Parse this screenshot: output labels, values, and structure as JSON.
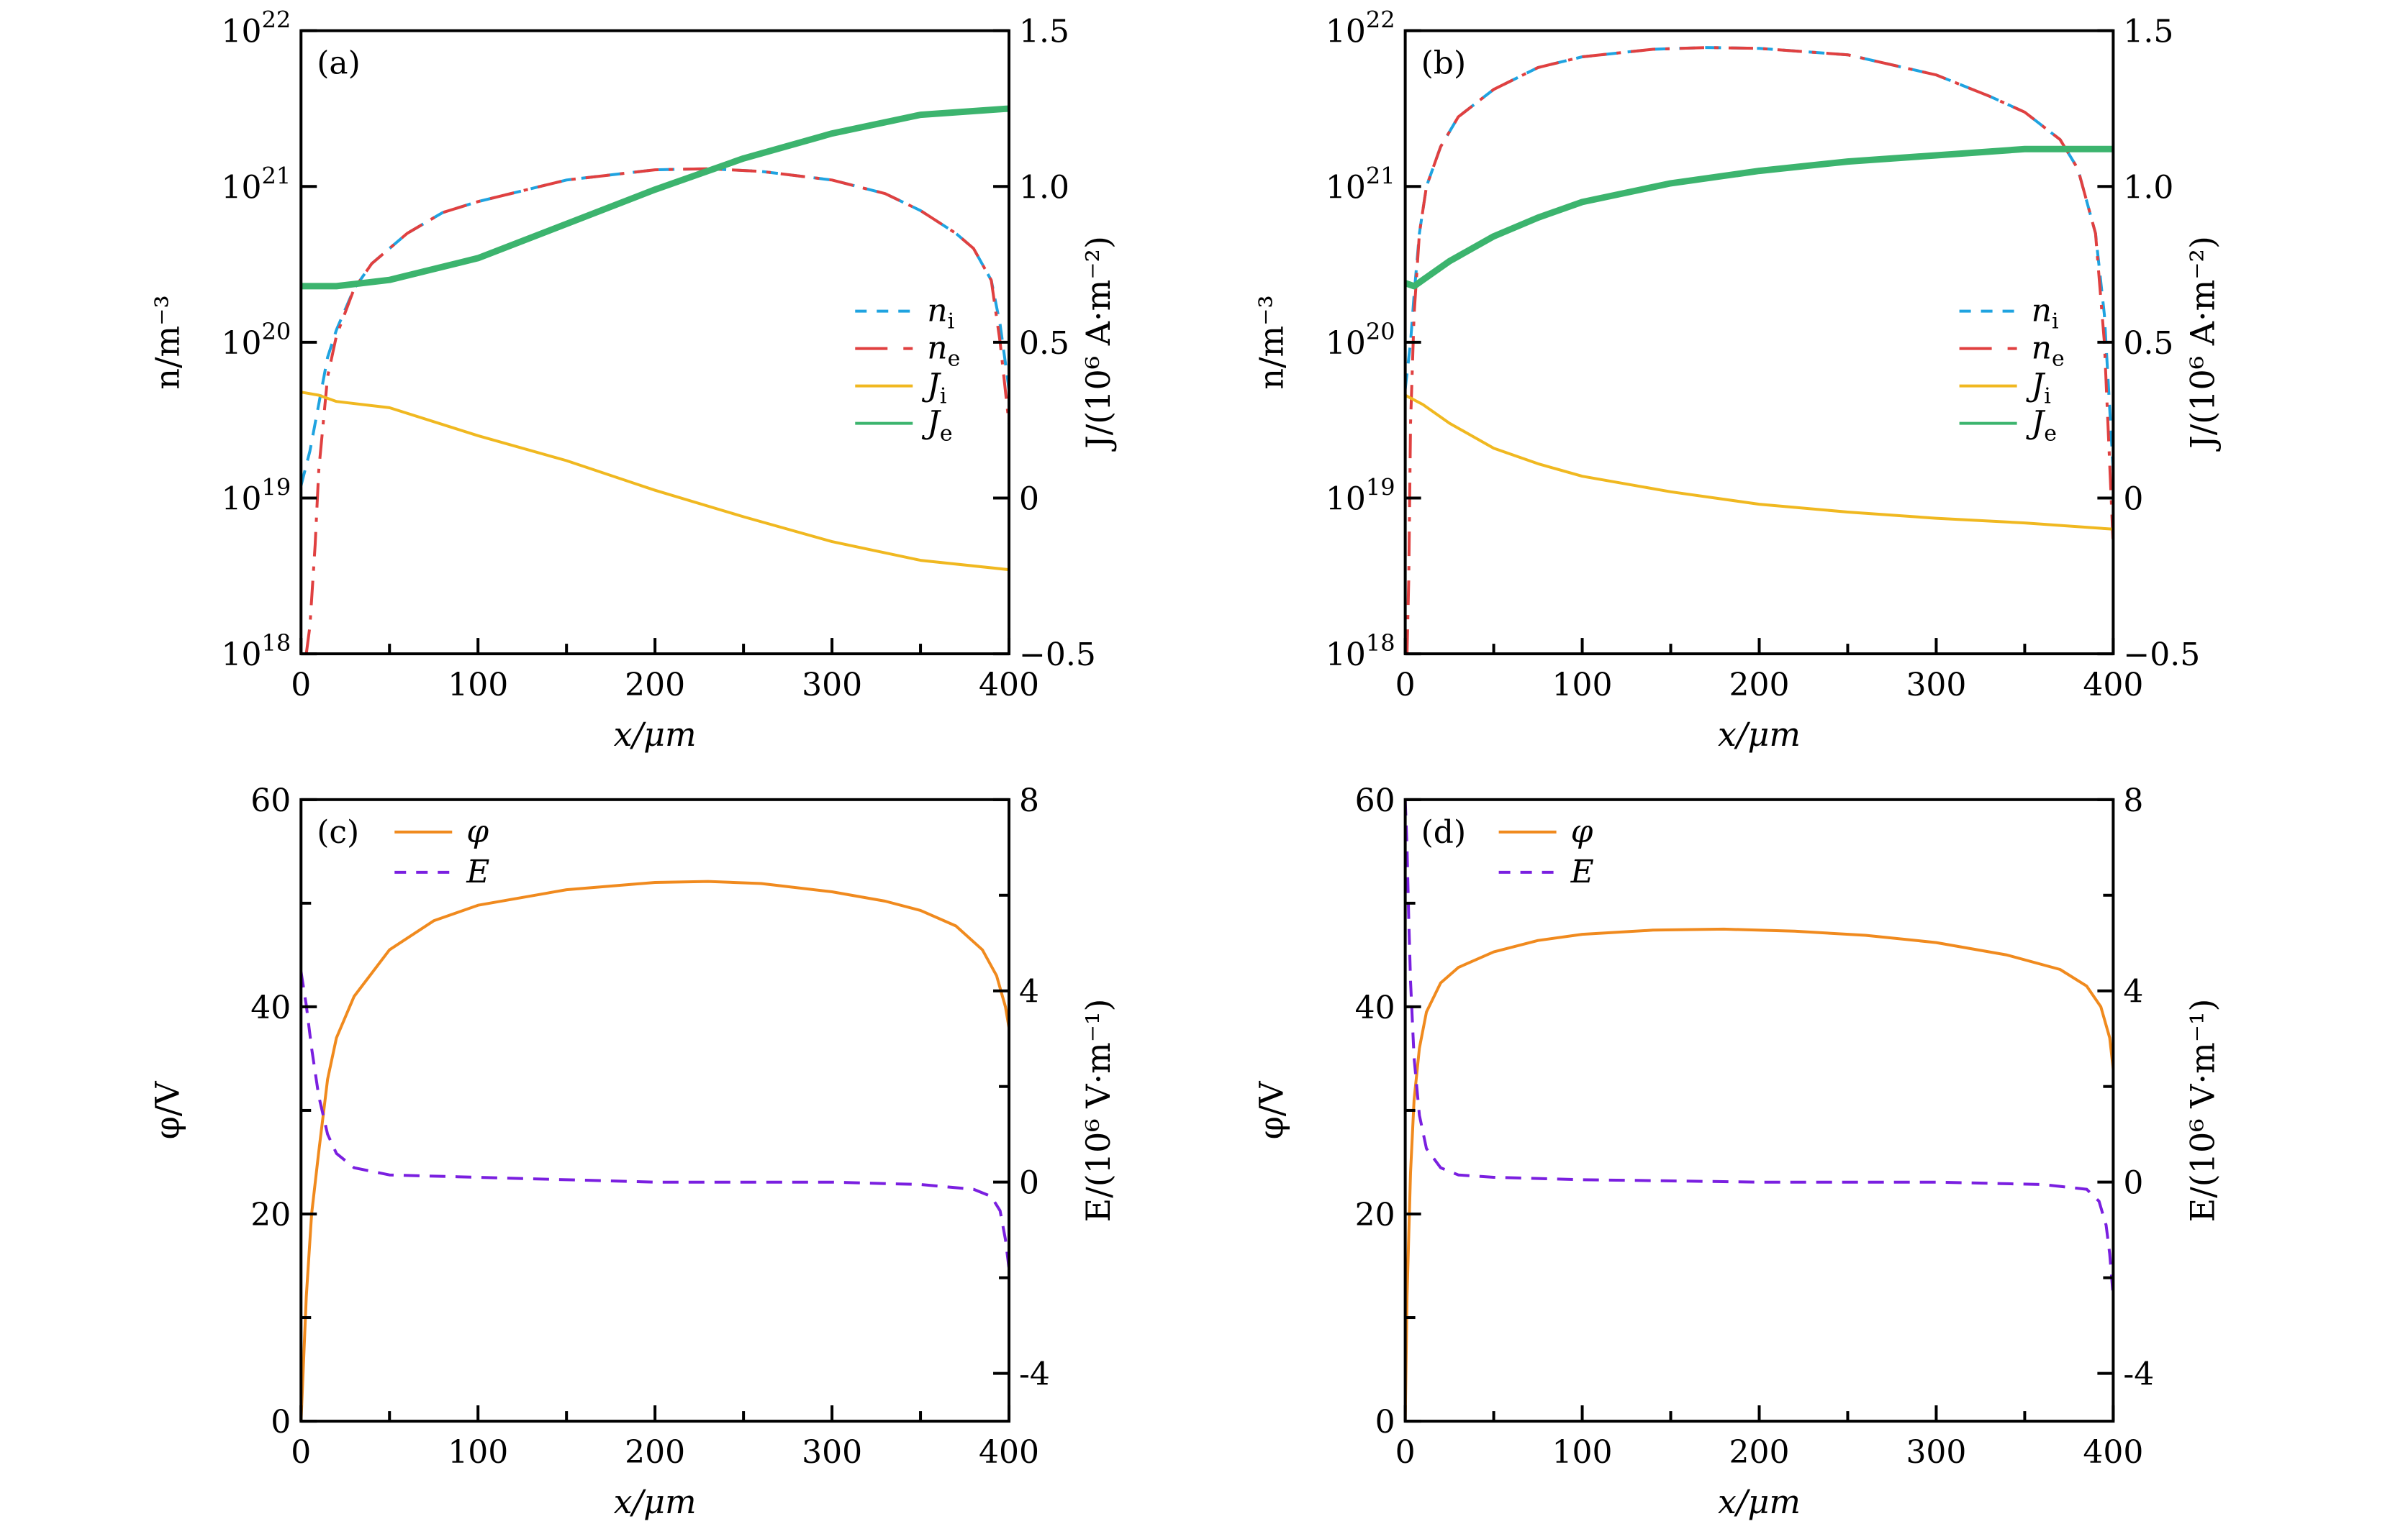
{
  "chart_data": [
    {
      "id": "a",
      "type": "line",
      "panel_label": "(a)",
      "xlabel": "x/μm",
      "ylabel": "n/m⁻³",
      "y2label": "J/(10⁶ A·m⁻²)",
      "xlim": [
        0,
        400
      ],
      "ylim_log10": [
        18,
        22
      ],
      "y2lim": [
        -0.5,
        1.5
      ],
      "xticks": [
        0,
        100,
        200,
        300,
        400
      ],
      "yticks": [
        "10^18",
        "10^19",
        "10^20",
        "10^21",
        "10^22"
      ],
      "y2ticks": [
        "−0.5",
        "0",
        "0.5",
        "1.0",
        "1.5"
      ],
      "legend_position": "center-right",
      "series": [
        {
          "name": "n_i",
          "label": "n",
          "sub": "i",
          "axis": "left-log",
          "color": "#1fa3e0",
          "dash": "dashed",
          "x": [
            0,
            5,
            10,
            15,
            20,
            30,
            40,
            60,
            80,
            100,
            150,
            200,
            230,
            260,
            300,
            330,
            350,
            370,
            380,
            390,
            395,
            400
          ],
          "y": [
            1.2e+19,
            2e+19,
            4e+19,
            8e+19,
            1.2e+20,
            2.2e+20,
            3.2e+20,
            5e+20,
            6.8e+20,
            8e+20,
            1.1e+21,
            1.28e+21,
            1.3e+21,
            1.25e+21,
            1.1e+21,
            9e+20,
            7e+20,
            5e+20,
            4e+20,
            2.5e+20,
            1.3e+20,
            5e+19
          ]
        },
        {
          "name": "n_e",
          "label": "n",
          "sub": "e",
          "axis": "left-log",
          "color": "#e04040",
          "dash": "dashdot",
          "x": [
            3,
            5,
            8,
            10,
            15,
            20,
            30,
            40,
            60,
            80,
            100,
            150,
            200,
            230,
            260,
            300,
            330,
            350,
            370,
            380,
            390,
            395,
            400
          ],
          "y": [
            1e+18,
            1.5e+18,
            5e+18,
            1.5e+19,
            6e+19,
            1.1e+20,
            2.2e+20,
            3.2e+20,
            5e+20,
            6.8e+20,
            8e+20,
            1.1e+21,
            1.28e+21,
            1.3e+21,
            1.25e+21,
            1.1e+21,
            9e+20,
            7e+20,
            5e+20,
            4e+20,
            2.5e+20,
            1e+20,
            3e+19
          ]
        },
        {
          "name": "J_i",
          "label": "J",
          "sub": "i",
          "axis": "right",
          "color": "#f0b820",
          "dash": "solid",
          "x": [
            0,
            10,
            20,
            50,
            100,
            150,
            200,
            250,
            300,
            350,
            400
          ],
          "y": [
            0.34,
            0.33,
            0.31,
            0.29,
            0.2,
            0.12,
            0.025,
            -0.06,
            -0.14,
            -0.2,
            -0.23
          ]
        },
        {
          "name": "J_e",
          "label": "J",
          "sub": "e",
          "axis": "right",
          "color": "#3cb46e",
          "dash": "solid",
          "x": [
            0,
            10,
            20,
            50,
            100,
            150,
            200,
            250,
            300,
            350,
            400
          ],
          "y": [
            0.68,
            0.68,
            0.68,
            0.7,
            0.77,
            0.88,
            0.99,
            1.09,
            1.17,
            1.23,
            1.25
          ]
        }
      ]
    },
    {
      "id": "b",
      "type": "line",
      "panel_label": "(b)",
      "xlabel": "x/μm",
      "ylabel": "n/m⁻³",
      "y2label": "J/(10⁶ A·m⁻²)",
      "xlim": [
        0,
        400
      ],
      "ylim_log10": [
        18,
        22
      ],
      "y2lim": [
        -0.5,
        1.5
      ],
      "xticks": [
        0,
        100,
        200,
        300,
        400
      ],
      "yticks": [
        "10^18",
        "10^19",
        "10^20",
        "10^21",
        "10^22"
      ],
      "y2ticks": [
        "−0.5",
        "0",
        "0.5",
        "1.0",
        "1.5"
      ],
      "legend_position": "center-right",
      "series": [
        {
          "name": "n_i",
          "label": "n",
          "sub": "i",
          "axis": "left-log",
          "color": "#1fa3e0",
          "dash": "dashed",
          "x": [
            0,
            3,
            5,
            8,
            12,
            20,
            30,
            50,
            75,
            100,
            140,
            170,
            200,
            250,
            300,
            330,
            350,
            370,
            380,
            390,
            395,
            400
          ],
          "y": [
            5e+19,
            1e+20,
            2e+20,
            5e+20,
            1e+21,
            1.8e+21,
            2.8e+21,
            4.2e+21,
            5.8e+21,
            6.8e+21,
            7.6e+21,
            7.8e+21,
            7.7e+21,
            7e+21,
            5.2e+21,
            3.8e+21,
            3e+21,
            2e+21,
            1.3e+21,
            5e+20,
            1.5e+20,
            1.5e+19
          ]
        },
        {
          "name": "n_e",
          "label": "n",
          "sub": "e",
          "axis": "left-log",
          "color": "#e04040",
          "dash": "dashdot",
          "x": [
            1,
            2,
            3,
            5,
            8,
            12,
            20,
            30,
            50,
            75,
            100,
            140,
            170,
            200,
            250,
            300,
            330,
            350,
            370,
            380,
            390,
            395,
            400
          ],
          "y": [
            1e+18,
            3e+18,
            3e+19,
            1.5e+20,
            5e+20,
            1e+21,
            1.8e+21,
            2.8e+21,
            4.2e+21,
            5.8e+21,
            6.8e+21,
            7.6e+21,
            7.8e+21,
            7.7e+21,
            7e+21,
            5.2e+21,
            3.8e+21,
            3e+21,
            2e+21,
            1.3e+21,
            5e+20,
            1e+20,
            5e+18
          ]
        },
        {
          "name": "J_i",
          "label": "J",
          "sub": "i",
          "axis": "right",
          "color": "#f0b820",
          "dash": "solid",
          "x": [
            0,
            10,
            25,
            50,
            75,
            100,
            150,
            200,
            250,
            300,
            350,
            400
          ],
          "y": [
            0.33,
            0.3,
            0.24,
            0.16,
            0.11,
            0.07,
            0.02,
            -0.02,
            -0.045,
            -0.065,
            -0.08,
            -0.1
          ]
        },
        {
          "name": "J_e",
          "label": "J",
          "sub": "e",
          "axis": "right",
          "color": "#3cb46e",
          "dash": "solid",
          "x": [
            0,
            5,
            10,
            25,
            50,
            75,
            100,
            150,
            200,
            250,
            300,
            350,
            400
          ],
          "y": [
            0.69,
            0.68,
            0.7,
            0.76,
            0.84,
            0.9,
            0.95,
            1.01,
            1.05,
            1.08,
            1.1,
            1.12,
            1.12
          ]
        }
      ]
    },
    {
      "id": "c",
      "type": "line",
      "panel_label": "(c)",
      "xlabel": "x/μm",
      "ylabel": "φ/V",
      "y2label": "E/(10⁶ V·m⁻¹)",
      "xlim": [
        0,
        400
      ],
      "ylim": [
        0,
        60
      ],
      "y2lim": [
        -5,
        8
      ],
      "xticks": [
        0,
        100,
        200,
        300,
        400
      ],
      "yticks": [
        0,
        20,
        40,
        60
      ],
      "y2ticks": [
        -4,
        0,
        4,
        8
      ],
      "legend_position": "top-left",
      "series": [
        {
          "name": "phi",
          "label": "φ",
          "sub": "",
          "axis": "left",
          "color": "#f08a1e",
          "dash": "solid",
          "x": [
            0,
            3,
            6,
            10,
            15,
            20,
            30,
            50,
            75,
            100,
            150,
            200,
            230,
            260,
            300,
            330,
            350,
            370,
            385,
            393,
            398,
            400
          ],
          "y": [
            0,
            12,
            20,
            26,
            33,
            37,
            41,
            45.5,
            48.3,
            49.8,
            51.3,
            52,
            52.1,
            51.9,
            51.1,
            50.2,
            49.3,
            47.8,
            45.5,
            43,
            40,
            38
          ]
        },
        {
          "name": "E",
          "label": "E",
          "sub": "",
          "axis": "right",
          "color": "#7a1fe0",
          "dash": "dashed",
          "x": [
            0,
            3,
            6,
            10,
            15,
            20,
            30,
            50,
            100,
            200,
            300,
            350,
            380,
            390,
            395,
            398,
            400
          ],
          "y": [
            4.4,
            3.7,
            2.8,
            1.8,
            1.0,
            0.6,
            0.3,
            0.15,
            0.1,
            0.0,
            0.0,
            -0.05,
            -0.15,
            -0.3,
            -0.6,
            -1.2,
            -1.8
          ]
        }
      ]
    },
    {
      "id": "d",
      "type": "line",
      "panel_label": "(d)",
      "xlabel": "x/μm",
      "ylabel": "φ/V",
      "y2label": "E/(10⁶ V·m⁻¹)",
      "xlim": [
        0,
        400
      ],
      "ylim": [
        0,
        60
      ],
      "y2lim": [
        -5,
        8
      ],
      "xticks": [
        0,
        100,
        200,
        300,
        400
      ],
      "yticks": [
        0,
        20,
        40,
        60
      ],
      "y2ticks": [
        -4,
        0,
        4,
        8
      ],
      "legend_position": "top-left",
      "series": [
        {
          "name": "phi",
          "label": "φ",
          "sub": "",
          "axis": "left",
          "color": "#f08a1e",
          "dash": "solid",
          "x": [
            0,
            1,
            3,
            5,
            8,
            12,
            20,
            30,
            50,
            75,
            100,
            140,
            180,
            220,
            260,
            300,
            340,
            370,
            385,
            393,
            398,
            400
          ],
          "y": [
            0,
            12,
            24,
            31,
            36,
            39.5,
            42.3,
            43.8,
            45.3,
            46.4,
            47,
            47.4,
            47.5,
            47.3,
            46.9,
            46.2,
            45,
            43.6,
            42,
            40,
            37,
            34
          ]
        },
        {
          "name": "E",
          "label": "E",
          "sub": "",
          "axis": "right",
          "color": "#7a1fe0",
          "dash": "dashed",
          "x": [
            0,
            1,
            2,
            3,
            5,
            8,
            12,
            20,
            30,
            50,
            100,
            200,
            300,
            360,
            385,
            392,
            396,
            398,
            400
          ],
          "y": [
            8,
            7,
            5.5,
            4.2,
            2.6,
            1.4,
            0.7,
            0.3,
            0.15,
            0.1,
            0.05,
            0.0,
            0.0,
            -0.05,
            -0.15,
            -0.4,
            -0.9,
            -1.5,
            -2.4
          ]
        }
      ]
    }
  ]
}
